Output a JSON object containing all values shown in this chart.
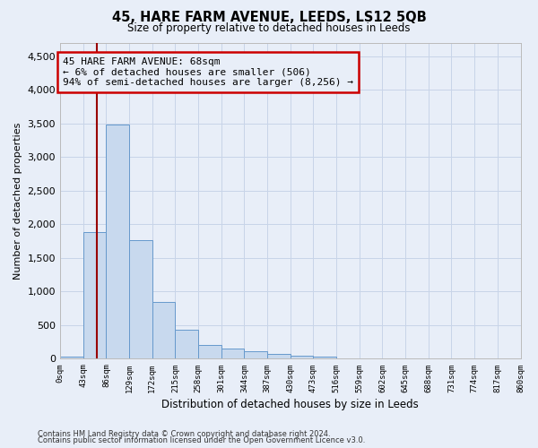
{
  "title": "45, HARE FARM AVENUE, LEEDS, LS12 5QB",
  "subtitle": "Size of property relative to detached houses in Leeds",
  "xlabel": "Distribution of detached houses by size in Leeds",
  "ylabel": "Number of detached properties",
  "bar_color": "#c8d9ee",
  "bar_edge_color": "#6699cc",
  "grid_color": "#c8d4e8",
  "bg_color": "#e8eef8",
  "annotation_line_color": "#990000",
  "annotation_box_color": "#cc0000",
  "annotation_text_line1": "45 HARE FARM AVENUE: 68sqm",
  "annotation_text_line2": "← 6% of detached houses are smaller (506)",
  "annotation_text_line3": "94% of semi-detached houses are larger (8,256) →",
  "property_size": 68,
  "bin_width": 43,
  "bin_starts": [
    0,
    43,
    86,
    129,
    172,
    215,
    258,
    301,
    344,
    387,
    430,
    473,
    516,
    559,
    602,
    645,
    688,
    731,
    774,
    817
  ],
  "bar_heights": [
    30,
    1880,
    3480,
    1760,
    840,
    430,
    200,
    155,
    110,
    70,
    50,
    30,
    0,
    0,
    0,
    0,
    0,
    0,
    0,
    0
  ],
  "xlim": [
    0,
    860
  ],
  "ylim": [
    0,
    4700
  ],
  "yticks": [
    0,
    500,
    1000,
    1500,
    2000,
    2500,
    3000,
    3500,
    4000,
    4500
  ],
  "xtick_labels": [
    "0sqm",
    "43sqm",
    "86sqm",
    "129sqm",
    "172sqm",
    "215sqm",
    "258sqm",
    "301sqm",
    "344sqm",
    "387sqm",
    "430sqm",
    "473sqm",
    "516sqm",
    "559sqm",
    "602sqm",
    "645sqm",
    "688sqm",
    "731sqm",
    "774sqm",
    "817sqm",
    "860sqm"
  ],
  "footer_line1": "Contains HM Land Registry data © Crown copyright and database right 2024.",
  "footer_line2": "Contains public sector information licensed under the Open Government Licence v3.0."
}
